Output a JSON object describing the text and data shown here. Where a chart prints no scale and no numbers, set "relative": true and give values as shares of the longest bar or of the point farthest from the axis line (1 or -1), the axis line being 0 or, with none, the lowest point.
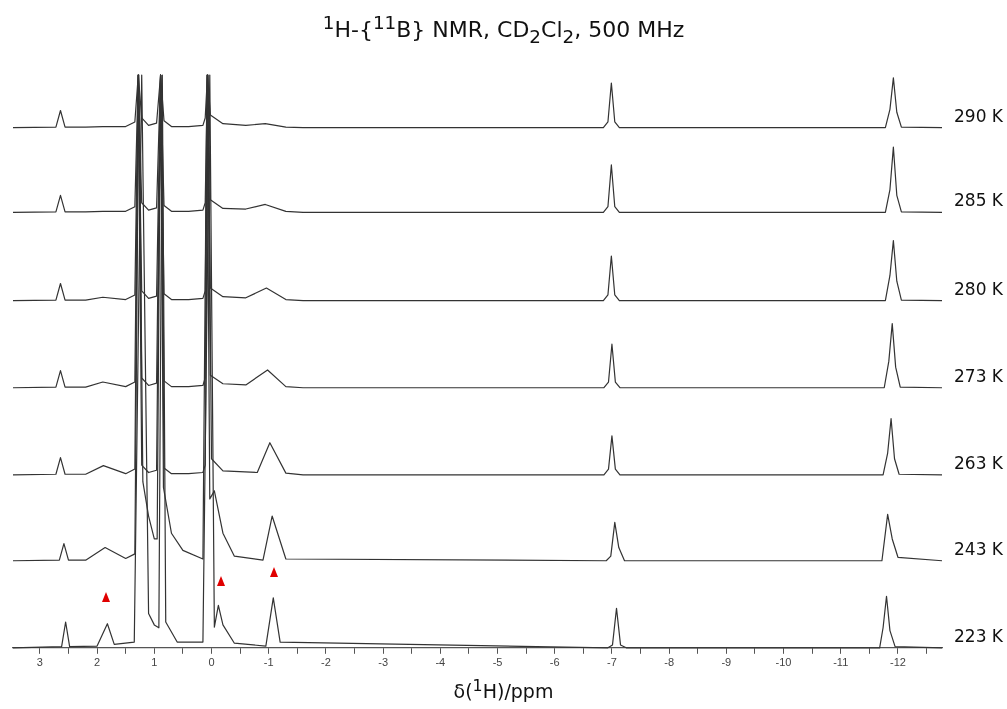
{
  "chart_data": {
    "type": "line",
    "title": "$^{1}$H-{$^{11}$B} NMR, CD$_{2}$Cl$_{2}$, 500 MHz",
    "xlabel": "δ($^{1}$H)/ppm",
    "relative": true,
    "legend": false,
    "grid": false,
    "marker": "none",
    "line_style": "solid",
    "xlim": [
      3.47,
      -12.77
    ],
    "xticks": [
      3,
      {
        "value": 2.5,
        "label": null
      },
      2,
      {
        "value": 1.5,
        "label": null
      },
      1,
      {
        "value": 0.5,
        "label": null
      },
      0,
      {
        "value": -0.5,
        "label": null
      },
      -1,
      {
        "value": -1.5,
        "label": null
      },
      -2,
      {
        "value": -2.5,
        "label": null
      },
      -3,
      {
        "value": -3.5,
        "label": null
      },
      -4,
      {
        "value": -4.5,
        "label": null
      },
      -5,
      {
        "value": -5.5,
        "label": null
      },
      -6,
      {
        "value": -6.5,
        "label": null
      },
      -7,
      {
        "value": -7.5,
        "label": null
      },
      -8,
      {
        "value": -8.5,
        "label": null
      },
      -9,
      {
        "value": -9.5,
        "label": null
      },
      -10,
      {
        "value": -10.5,
        "label": null
      },
      -11,
      {
        "value": -11.5,
        "label": null
      },
      -12,
      {
        "value": -12.5,
        "label": null
      }
    ],
    "series": [
      {
        "name": "290 K",
        "color": "#333333",
        "x": [
          3.47,
          2.72,
          2.64,
          2.56,
          2.2,
          1.9,
          1.5,
          1.34,
          1.28,
          1.22,
          1.1,
          0.96,
          0.89,
          0.83,
          0.7,
          0.4,
          0.15,
          0.11,
          0.07,
          0.02,
          -0.2,
          -0.6,
          -0.94,
          -1.3,
          -1.6,
          -6.85,
          -6.93,
          -6.99,
          -7.05,
          -7.13,
          -11.78,
          -11.86,
          -11.92,
          -11.98,
          -12.06,
          -12.77
        ],
        "values": [
          0.908,
          0.909,
          0.938,
          0.909,
          0.909,
          0.91,
          0.91,
          0.918,
          1,
          0.925,
          0.912,
          0.916,
          1,
          0.92,
          0.91,
          0.91,
          0.912,
          0.925,
          1,
          0.93,
          0.915,
          0.912,
          0.915,
          0.909,
          0.908,
          0.908,
          0.918,
          0.986,
          0.918,
          0.908,
          0.908,
          0.94,
          0.995,
          0.935,
          0.909,
          0.908
        ]
      },
      {
        "name": "285 K",
        "color": "#333333",
        "x": [
          3.47,
          2.72,
          2.64,
          2.56,
          2.2,
          1.9,
          1.5,
          1.34,
          1.28,
          1.22,
          1.1,
          0.96,
          0.89,
          0.83,
          0.7,
          0.4,
          0.15,
          0.11,
          0.07,
          0.02,
          -0.2,
          -0.6,
          -0.94,
          -1.3,
          -1.6,
          -6.85,
          -6.93,
          -6.99,
          -7.05,
          -7.13,
          -11.78,
          -11.86,
          -11.92,
          -11.98,
          -12.06,
          -12.77
        ],
        "values": [
          0.76,
          0.761,
          0.79,
          0.761,
          0.761,
          0.762,
          0.762,
          0.77,
          1,
          0.777,
          0.764,
          0.768,
          1,
          0.772,
          0.762,
          0.762,
          0.764,
          0.777,
          1,
          0.782,
          0.767,
          0.766,
          0.774,
          0.762,
          0.76,
          0.76,
          0.77,
          0.843,
          0.77,
          0.76,
          0.76,
          0.8,
          0.874,
          0.79,
          0.761,
          0.76
        ]
      },
      {
        "name": "280 K",
        "color": "#333333",
        "x": [
          3.47,
          2.72,
          2.64,
          2.56,
          2.2,
          1.9,
          1.5,
          1.34,
          1.28,
          1.22,
          1.1,
          0.96,
          0.89,
          0.83,
          0.7,
          0.4,
          0.15,
          0.11,
          0.07,
          0.02,
          -0.2,
          -0.6,
          -0.96,
          -1.3,
          -1.6,
          -6.85,
          -6.93,
          -6.99,
          -7.05,
          -7.13,
          -11.78,
          -11.86,
          -11.92,
          -11.98,
          -12.06,
          -12.77
        ],
        "values": [
          0.606,
          0.607,
          0.636,
          0.607,
          0.607,
          0.612,
          0.608,
          0.616,
          1,
          0.623,
          0.61,
          0.614,
          1,
          0.618,
          0.608,
          0.608,
          0.61,
          0.623,
          1,
          0.628,
          0.613,
          0.611,
          0.628,
          0.608,
          0.606,
          0.606,
          0.616,
          0.684,
          0.616,
          0.606,
          0.606,
          0.65,
          0.711,
          0.64,
          0.607,
          0.606
        ]
      },
      {
        "name": "273 K",
        "color": "#333333",
        "x": [
          3.47,
          2.72,
          2.64,
          2.56,
          2.2,
          1.9,
          1.5,
          1.34,
          1.28,
          1.22,
          1.1,
          0.96,
          0.89,
          0.83,
          0.7,
          0.4,
          0.15,
          0.11,
          0.07,
          0.02,
          -0.2,
          -0.6,
          -0.98,
          -1.3,
          -1.6,
          -6.86,
          -6.94,
          -7.0,
          -7.06,
          -7.14,
          -11.76,
          -11.84,
          -11.9,
          -11.96,
          -12.04,
          -12.77
        ],
        "values": [
          0.454,
          0.455,
          0.484,
          0.455,
          0.455,
          0.464,
          0.456,
          0.464,
          1,
          0.471,
          0.458,
          0.462,
          1,
          0.466,
          0.456,
          0.456,
          0.458,
          0.471,
          1,
          0.476,
          0.461,
          0.459,
          0.485,
          0.456,
          0.454,
          0.454,
          0.464,
          0.53,
          0.464,
          0.454,
          0.454,
          0.5,
          0.566,
          0.49,
          0.455,
          0.454
        ]
      },
      {
        "name": "263 K",
        "color": "#333333",
        "x": [
          3.47,
          2.72,
          2.64,
          2.56,
          2.2,
          1.89,
          1.5,
          1.34,
          1.28,
          1.22,
          1.1,
          0.96,
          0.89,
          0.83,
          0.7,
          0.4,
          0.15,
          0.11,
          0.06,
          0.0,
          -0.2,
          -0.8,
          -1.02,
          -1.3,
          -1.6,
          -6.86,
          -6.94,
          -7.0,
          -7.06,
          -7.14,
          -11.74,
          -11.82,
          -11.88,
          -11.94,
          -12.02,
          -12.77
        ],
        "values": [
          0.302,
          0.303,
          0.332,
          0.303,
          0.303,
          0.318,
          0.304,
          0.312,
          1,
          0.319,
          0.306,
          0.31,
          1,
          0.314,
          0.304,
          0.304,
          0.306,
          0.319,
          1,
          0.33,
          0.309,
          0.306,
          0.358,
          0.305,
          0.302,
          0.302,
          0.312,
          0.37,
          0.312,
          0.302,
          0.302,
          0.34,
          0.4,
          0.33,
          0.303,
          0.302
        ]
      },
      {
        "name": "243 K",
        "color": "#333333",
        "x": [
          3.47,
          2.66,
          2.58,
          2.5,
          2.2,
          1.86,
          1.5,
          1.34,
          1.27,
          1.2,
          1.1,
          1.0,
          0.95,
          0.89,
          0.84,
          0.7,
          0.5,
          0.15,
          0.08,
          0.03,
          -0.05,
          -0.2,
          -0.4,
          -0.9,
          -1.06,
          -1.3,
          -6.9,
          -6.98,
          -7.05,
          -7.12,
          -7.22,
          -11.72,
          -11.82,
          -11.9,
          -12.0,
          -12.77
        ],
        "values": [
          0.152,
          0.153,
          0.182,
          0.153,
          0.153,
          0.175,
          0.156,
          0.164,
          1,
          0.29,
          0.23,
          0.19,
          0.19,
          1,
          0.28,
          0.2,
          0.17,
          0.155,
          1,
          0.26,
          0.274,
          0.2,
          0.16,
          0.153,
          0.23,
          0.155,
          0.152,
          0.16,
          0.219,
          0.175,
          0.152,
          0.152,
          0.233,
          0.19,
          0.158,
          0.152
        ]
      },
      {
        "name": "223 K",
        "color": "#333333",
        "x": [
          3.47,
          2.62,
          2.55,
          2.48,
          2.0,
          1.82,
          1.7,
          1.35,
          1.22,
          1.1,
          1.0,
          0.92,
          0.86,
          0.8,
          0.6,
          0.15,
          0.03,
          -0.05,
          -0.12,
          -0.2,
          -0.4,
          -0.95,
          -1.08,
          -1.2,
          -6.93,
          -7.01,
          -7.08,
          -7.15,
          -7.25,
          -11.68,
          -11.74,
          -11.8,
          -11.86,
          -11.95,
          -12.77
        ],
        "values": [
          0,
          0.002,
          0.045,
          0.002,
          0.003,
          0.042,
          0.006,
          0.01,
          1,
          0.06,
          0.04,
          0.035,
          1,
          0.045,
          0.01,
          0.01,
          1,
          0.036,
          0.074,
          0.04,
          0.008,
          0.003,
          0.087,
          0.01,
          0,
          0.005,
          0.069,
          0.005,
          0,
          0,
          0.035,
          0.09,
          0.03,
          0.002,
          0
        ]
      }
    ]
  }
}
